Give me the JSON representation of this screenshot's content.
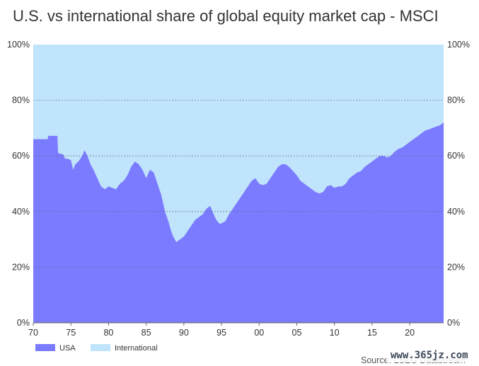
{
  "chart_data": {
    "type": "area",
    "title": "U.S. vs international share of global equity market cap - MSCI",
    "source": "Source: LSEG Datastream",
    "xlabel": "",
    "ylabel": "",
    "stacked": true,
    "x_range": [
      1970,
      2024.5
    ],
    "ylim": [
      0,
      100
    ],
    "x_ticks": [
      {
        "value": 1970,
        "label": "70"
      },
      {
        "value": 1975,
        "label": "75"
      },
      {
        "value": 1980,
        "label": "80"
      },
      {
        "value": 1985,
        "label": "85"
      },
      {
        "value": 1990,
        "label": "90"
      },
      {
        "value": 1995,
        "label": "95"
      },
      {
        "value": 2000,
        "label": "00"
      },
      {
        "value": 2005,
        "label": "05"
      },
      {
        "value": 2010,
        "label": "10"
      },
      {
        "value": 2015,
        "label": "15"
      },
      {
        "value": 2020,
        "label": "20"
      }
    ],
    "y_ticks": [
      {
        "value": 0,
        "label": "0%"
      },
      {
        "value": 20,
        "label": "20%"
      },
      {
        "value": 40,
        "label": "40%"
      },
      {
        "value": 60,
        "label": "60%"
      },
      {
        "value": 80,
        "label": "80%"
      },
      {
        "value": 100,
        "label": "100%"
      }
    ],
    "grid": true,
    "legend_position": "bottom-left",
    "series": [
      {
        "name": "USA",
        "color": "#7b7bff",
        "x": [
          1970.0,
          1971.0,
          1971.9,
          1972.0,
          1973.0,
          1973.2,
          1973.3,
          1974.0,
          1974.2,
          1974.5,
          1975.0,
          1975.3,
          1975.6,
          1976.0,
          1976.5,
          1976.8,
          1977.2,
          1977.6,
          1978.0,
          1978.5,
          1979.0,
          1979.5,
          1980.0,
          1980.5,
          1981.0,
          1981.5,
          1982.0,
          1982.5,
          1983.0,
          1983.5,
          1984.0,
          1984.5,
          1985.0,
          1985.5,
          1986.0,
          1986.5,
          1987.0,
          1987.5,
          1988.0,
          1988.3,
          1988.6,
          1989.0,
          1989.5,
          1990.0,
          1990.5,
          1991.0,
          1991.5,
          1992.0,
          1992.5,
          1993.0,
          1993.5,
          1993.8,
          1994.3,
          1994.8,
          1995.5,
          1996.0,
          1996.5,
          1997.0,
          1997.5,
          1998.0,
          1998.5,
          1999.0,
          1999.5,
          2000.0,
          2000.5,
          2001.0,
          2001.5,
          2002.0,
          2002.5,
          2003.0,
          2003.5,
          2004.0,
          2004.5,
          2005.0,
          2005.5,
          2006.0,
          2006.5,
          2007.0,
          2007.5,
          2008.0,
          2008.5,
          2009.0,
          2009.5,
          2010.0,
          2010.5,
          2011.0,
          2011.5,
          2012.0,
          2012.5,
          2013.0,
          2013.5,
          2014.0,
          2014.5,
          2015.0,
          2015.5,
          2016.0,
          2016.5,
          2017.0,
          2017.5,
          2018.0,
          2018.5,
          2019.0,
          2019.5,
          2020.0,
          2020.5,
          2021.0,
          2021.5,
          2022.0,
          2022.5,
          2023.0,
          2023.5,
          2024.0,
          2024.5
        ],
        "values": [
          66.0,
          66.0,
          66.0,
          67.2,
          67.2,
          67.2,
          61.0,
          60.5,
          59.0,
          59.0,
          58.5,
          55.0,
          57.0,
          58.0,
          60.0,
          62.0,
          60.0,
          57.0,
          55.0,
          52.0,
          49.0,
          48.0,
          49.0,
          48.5,
          48.0,
          50.0,
          51.0,
          53.0,
          56.0,
          58.0,
          57.0,
          55.0,
          52.0,
          55.0,
          54.0,
          50.0,
          46.0,
          40.0,
          36.0,
          33.0,
          31.0,
          29.0,
          30.0,
          31.0,
          33.0,
          35.0,
          37.0,
          38.0,
          39.0,
          41.0,
          42.0,
          40.0,
          37.0,
          35.5,
          36.5,
          39.0,
          41.0,
          43.0,
          45.0,
          47.0,
          49.0,
          51.0,
          52.0,
          50.0,
          49.5,
          50.0,
          52.0,
          54.0,
          56.0,
          57.0,
          57.0,
          56.0,
          54.5,
          53.0,
          51.0,
          50.0,
          49.0,
          48.0,
          47.0,
          46.5,
          47.0,
          49.0,
          49.5,
          48.5,
          49.0,
          49.0,
          50.0,
          52.0,
          53.0,
          54.0,
          54.5,
          56.0,
          57.0,
          58.0,
          59.0,
          60.0,
          60.0,
          59.5,
          60.0,
          61.5,
          62.5,
          63.0,
          64.0,
          65.0,
          66.0,
          67.0,
          68.0,
          69.0,
          69.5,
          70.0,
          70.5,
          71.0,
          72.0
        ]
      },
      {
        "name": "International",
        "color": "#c0e4fb"
      }
    ]
  },
  "watermark": "www.365jz.com"
}
